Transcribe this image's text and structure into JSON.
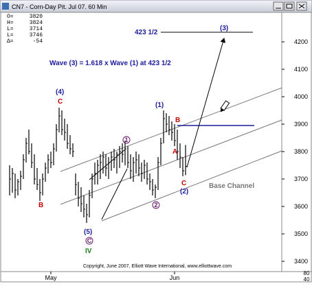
{
  "window": {
    "title": "CN7 - Corn-Day Pit.  Jul 07.  60 Min"
  },
  "info": [
    {
      "label": "O=",
      "value": "3820"
    },
    {
      "label": "H=",
      "value": "3824"
    },
    {
      "label": "L=",
      "value": "3714"
    },
    {
      "label": "L=",
      "value": "3746"
    },
    {
      "label": "Δ=",
      "value": "-54"
    }
  ],
  "annotations": {
    "target": "423 1/2",
    "wave3": "(3)",
    "projection": "Wave (3) = 1.618 x Wave (1) at 423 1/2",
    "wave4": "(4)",
    "wave4_c": "C",
    "left_b": "B",
    "wave1": "(1)",
    "b": "B",
    "a": "A",
    "c": "C",
    "wave2": "(2)",
    "minor1": "1",
    "minor2": "2",
    "wave5": "(5)",
    "minor_c": "C",
    "iv": "IV",
    "base_channel": "Base Channel"
  },
  "copyright": "Copyright, June 2007, Elliott Wave International, www.elliottwave.com",
  "lower_panel_ticks": [
    "80",
    "40"
  ],
  "chart_data": {
    "type": "ohlc",
    "color": "#000000",
    "x": [
      0,
      1,
      2,
      3,
      4,
      5,
      6,
      7,
      8,
      9,
      10,
      11,
      12,
      13,
      14,
      15,
      16,
      17,
      18,
      19,
      20,
      21,
      22,
      23,
      24,
      25,
      26,
      27,
      28,
      29,
      30,
      31,
      32,
      33,
      34,
      35,
      36,
      37,
      38,
      39,
      40,
      41,
      42,
      43,
      44,
      45,
      46,
      47,
      48,
      49,
      50,
      51,
      52,
      53,
      54,
      55,
      56,
      57,
      58,
      59,
      60,
      61,
      62,
      63,
      64
    ],
    "high": [
      3750,
      3740,
      3720,
      3700,
      3730,
      3790,
      3850,
      3880,
      3830,
      3790,
      3740,
      3700,
      3720,
      3760,
      3790,
      3800,
      3830,
      3900,
      3960,
      3950,
      3920,
      3900,
      3860,
      3830,
      3720,
      3690,
      3670,
      3640,
      3610,
      3660,
      3720,
      3760,
      3770,
      3790,
      3800,
      3790,
      3780,
      3800,
      3810,
      3800,
      3820,
      3830,
      3840,
      3820,
      3790,
      3780,
      3800,
      3790,
      3760,
      3770,
      3760,
      3720,
      3700,
      3680,
      3780,
      3850,
      3950,
      3940,
      3930,
      3910,
      3900,
      3880,
      3830,
      3780,
      3824
    ],
    "low": [
      3640,
      3650,
      3630,
      3640,
      3660,
      3700,
      3760,
      3790,
      3740,
      3680,
      3660,
      3620,
      3640,
      3690,
      3720,
      3740,
      3750,
      3800,
      3870,
      3860,
      3840,
      3810,
      3790,
      3780,
      3640,
      3600,
      3580,
      3560,
      3540,
      3560,
      3630,
      3680,
      3680,
      3700,
      3720,
      3710,
      3700,
      3730,
      3740,
      3720,
      3740,
      3760,
      3750,
      3740,
      3700,
      3690,
      3720,
      3710,
      3690,
      3700,
      3680,
      3660,
      3640,
      3630,
      3660,
      3750,
      3830,
      3870,
      3860,
      3840,
      3820,
      3770,
      3740,
      3710,
      3714
    ],
    "close": [
      3700,
      3720,
      3660,
      3690,
      3710,
      3770,
      3830,
      3800,
      3760,
      3700,
      3680,
      3650,
      3700,
      3740,
      3770,
      3760,
      3810,
      3880,
      3930,
      3880,
      3870,
      3830,
      3810,
      3800,
      3680,
      3630,
      3610,
      3590,
      3570,
      3640,
      3700,
      3720,
      3750,
      3760,
      3780,
      3740,
      3760,
      3780,
      3770,
      3790,
      3800,
      3790,
      3810,
      3760,
      3730,
      3760,
      3770,
      3740,
      3720,
      3750,
      3700,
      3690,
      3660,
      3670,
      3760,
      3830,
      3920,
      3900,
      3880,
      3870,
      3840,
      3800,
      3780,
      3730,
      3746
    ],
    "xlim": [
      -1,
      99
    ],
    "xticks": [
      {
        "value": 15,
        "label": "May"
      },
      {
        "value": 60,
        "label": "Jun"
      }
    ],
    "ylim": [
      3365,
      4300
    ],
    "yticks": [
      3400,
      3500,
      3600,
      3700,
      3800,
      3900,
      4000,
      4100,
      4200
    ]
  }
}
